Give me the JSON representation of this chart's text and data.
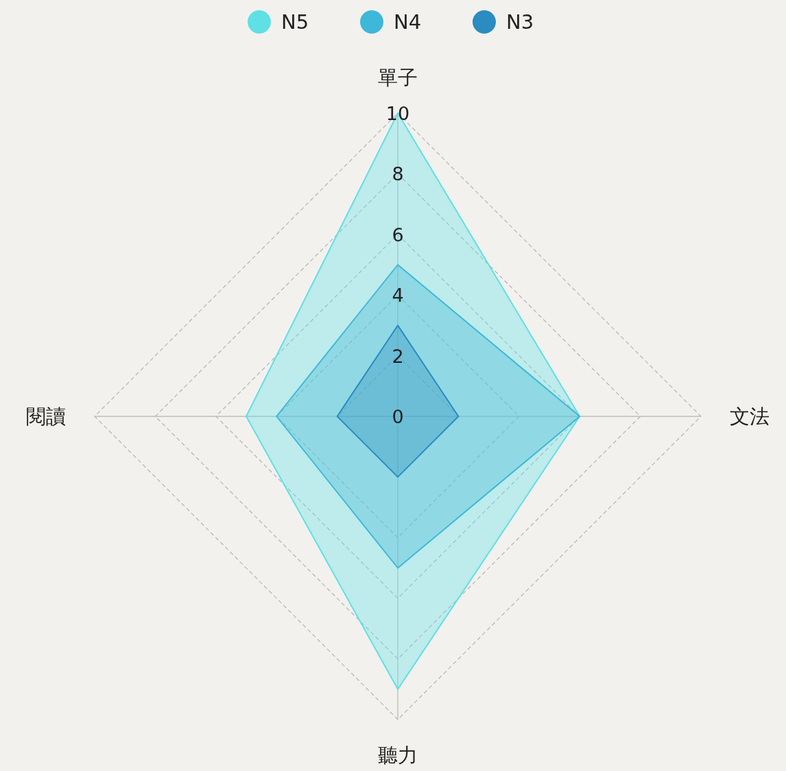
{
  "chart_data": {
    "type": "radar",
    "categories": [
      "單子",
      "文法",
      "聽力",
      "閱讀"
    ],
    "series": [
      {
        "name": "N5",
        "color": "#5fe0e4",
        "values": [
          10,
          6,
          9,
          5
        ]
      },
      {
        "name": "N4",
        "color": "#3db8d8",
        "values": [
          5,
          6,
          5,
          4
        ]
      },
      {
        "name": "N3",
        "color": "#2a8cc0",
        "values": [
          3,
          2,
          2,
          2
        ]
      }
    ],
    "ylim": [
      0,
      10
    ],
    "yticks": [
      0,
      2,
      4,
      6,
      8,
      10
    ],
    "grid": true,
    "legend": "top"
  }
}
